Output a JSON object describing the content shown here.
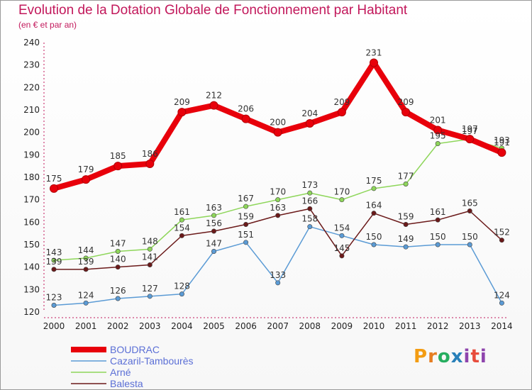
{
  "title": "Evolution de la Dotation Globale de Fonctionnement par Habitant",
  "subtitle": "(en € et par an)",
  "logo": {
    "text": "Proxiti"
  },
  "colors": {
    "BOUDRAC": "#e8000b",
    "Cazaril-Tambourès": "#5b9bd5",
    "Arné": "#8ed65a",
    "Balesta": "#6b1a1a",
    "logo_p": "#f39c12",
    "logo_r": "#e67e22",
    "logo_o": "#27ae60",
    "logo_x": "#2980b9",
    "logo_i": "#8e44ad",
    "logo_t": "#e74c3c"
  },
  "chart_data": {
    "type": "line",
    "title": "Evolution de la Dotation Globale de Fonctionnement par Habitant",
    "subtitle": "(en € et par an)",
    "xlabel": "",
    "ylabel": "",
    "ylim": [
      120,
      240
    ],
    "yticks": [
      120,
      130,
      140,
      150,
      160,
      170,
      180,
      190,
      200,
      210,
      220,
      230,
      240
    ],
    "x": [
      "2000",
      "2001",
      "2002",
      "2003",
      "2004",
      "2005",
      "2006",
      "2007",
      "2008",
      "2009",
      "2010",
      "2011",
      "2012",
      "2013",
      "2014"
    ],
    "grid": false,
    "legend": "bottom-left",
    "series": [
      {
        "name": "BOUDRAC",
        "values": [
          175,
          179,
          185,
          186,
          209,
          212,
          206,
          200,
          204,
          209,
          231,
          209,
          201,
          197,
          191
        ]
      },
      {
        "name": "Cazaril-Tambourès",
        "values": [
          123,
          124,
          126,
          127,
          128,
          147,
          151,
          133,
          158,
          154,
          150,
          149,
          150,
          150,
          124
        ]
      },
      {
        "name": "Arné",
        "values": [
          143,
          144,
          147,
          148,
          161,
          163,
          167,
          170,
          173,
          170,
          175,
          177,
          195,
          197,
          193
        ]
      },
      {
        "name": "Balesta",
        "values": [
          139,
          139,
          140,
          141,
          154,
          156,
          159,
          163,
          166,
          145,
          164,
          159,
          161,
          165,
          152
        ]
      }
    ]
  }
}
